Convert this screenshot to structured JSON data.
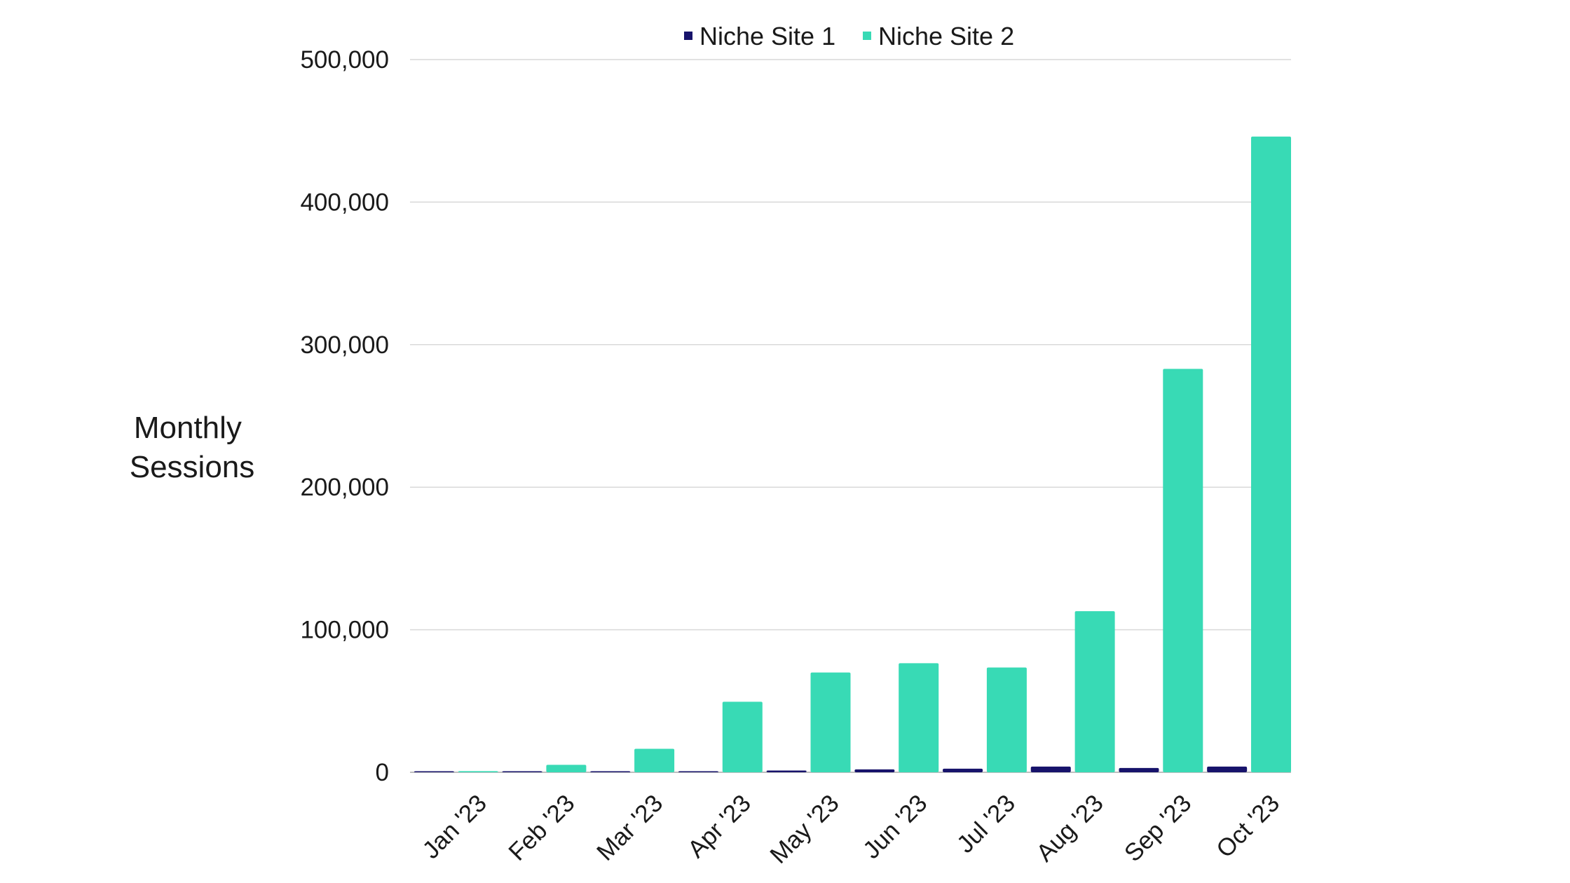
{
  "chart_data": {
    "type": "bar",
    "categories": [
      "Jan '23",
      "Feb '23",
      "Mar '23",
      "Apr '23",
      "May '23",
      "Jun '23",
      "Jul '23",
      "Aug '23",
      "Sep '23",
      "Oct '23"
    ],
    "series": [
      {
        "name": "Niche Site 1",
        "color": "#17136b",
        "values": [
          60,
          150,
          300,
          600,
          1200,
          2000,
          2500,
          4000,
          3000,
          4000
        ]
      },
      {
        "name": "Niche Site 2",
        "color": "#38dab5",
        "values": [
          800,
          5200,
          16500,
          49500,
          70000,
          76500,
          73500,
          113000,
          283000,
          446000
        ]
      }
    ],
    "title": "",
    "xlabel": "",
    "ylabel": "Monthly Sessions",
    "ylabel_lines": [
      "Monthly",
      "Sessions"
    ],
    "ylim": [
      0,
      500000
    ],
    "yticks": [
      0,
      100000,
      200000,
      300000,
      400000,
      500000
    ],
    "ytick_labels": [
      "0",
      "100,000",
      "200,000",
      "300,000",
      "400,000",
      "500,000"
    ],
    "grid": true,
    "legend_position": "top-center"
  }
}
